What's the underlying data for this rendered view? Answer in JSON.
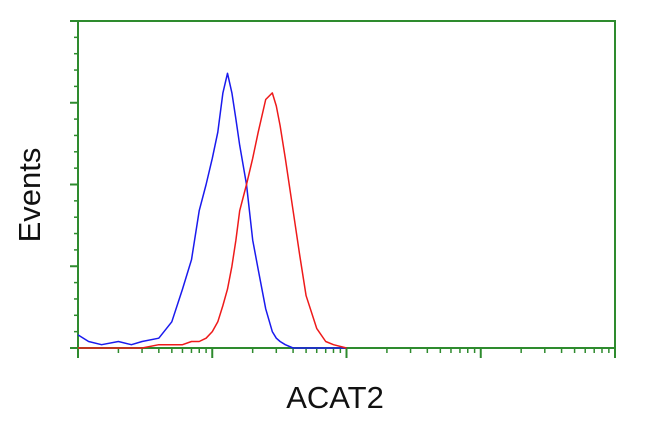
{
  "chart_data": {
    "type": "line",
    "y_label": "Events",
    "x_label": "ACAT2",
    "x": [
      1,
      1.2,
      1.5,
      2,
      2.5,
      3,
      4,
      5,
      6,
      7,
      8,
      9,
      10,
      11,
      12,
      13,
      14,
      15,
      16,
      18,
      20,
      22,
      25,
      28,
      30,
      32,
      35,
      40,
      45,
      50,
      60,
      70,
      80,
      100
    ],
    "series": [
      {
        "color": "#1a1aee",
        "values": [
          4,
          2,
          1,
          2,
          1,
          2,
          3,
          8,
          18,
          27,
          42,
          50,
          58,
          66,
          78,
          84,
          78,
          70,
          62,
          50,
          33,
          24,
          12,
          5,
          3,
          2,
          1,
          0,
          0,
          0,
          0,
          0,
          0,
          0
        ]
      },
      {
        "color": "#ee1a1a",
        "values": [
          0,
          0,
          0,
          0,
          0,
          0,
          1,
          1,
          1,
          2,
          2,
          3,
          5,
          8,
          13,
          18,
          25,
          33,
          42,
          50,
          58,
          66,
          76,
          78,
          74,
          68,
          58,
          42,
          28,
          16,
          6,
          2,
          1,
          0
        ]
      }
    ],
    "xscale": "log",
    "xlim": [
      1,
      10000
    ],
    "xticks": [
      1,
      10,
      100,
      1000,
      10000
    ],
    "ylim": [
      0,
      100
    ],
    "yticks": [
      0,
      25,
      50,
      75,
      100
    ],
    "axis_color": "#2e8b2e"
  }
}
